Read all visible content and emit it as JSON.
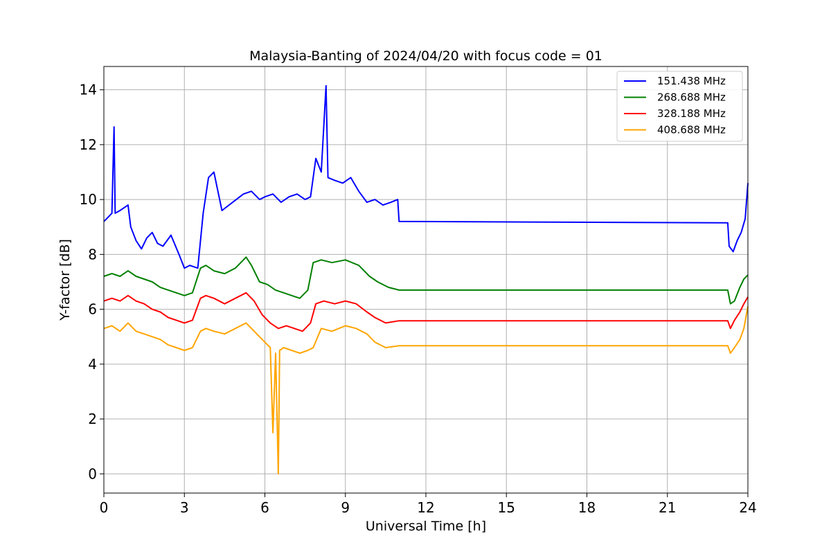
{
  "chart_data": {
    "type": "line",
    "title": "Malaysia-Banting of 2024/04/20 with focus code = 01",
    "xlabel": "Universal Time [h]",
    "ylabel": "Y-factor [dB]",
    "xlim": [
      0,
      24
    ],
    "ylim": [
      -0.7,
      14.85
    ],
    "xticks": [
      0,
      3,
      6,
      9,
      12,
      15,
      18,
      21,
      24
    ],
    "yticks": [
      0,
      2,
      4,
      6,
      8,
      10,
      12,
      14
    ],
    "grid": true,
    "legend_position": "top-right",
    "series": [
      {
        "name": "151.438 MHz",
        "color": "#0000ff",
        "x": [
          0,
          0.1,
          0.3,
          0.38,
          0.42,
          0.6,
          0.9,
          1.0,
          1.2,
          1.4,
          1.6,
          1.8,
          2.0,
          2.2,
          2.5,
          2.8,
          3.0,
          3.2,
          3.5,
          3.7,
          3.9,
          4.1,
          4.4,
          4.8,
          5.2,
          5.5,
          5.8,
          6.0,
          6.3,
          6.6,
          6.9,
          7.2,
          7.5,
          7.7,
          7.9,
          8.1,
          8.28,
          8.35,
          8.6,
          8.9,
          9.2,
          9.5,
          9.8,
          10.1,
          10.4,
          10.7,
          10.95,
          11.0,
          23.25,
          23.3,
          23.45,
          23.6,
          23.75,
          23.9,
          24.0
        ],
        "y": [
          9.2,
          9.3,
          9.5,
          12.65,
          9.5,
          9.6,
          9.8,
          9.0,
          8.5,
          8.2,
          8.6,
          8.8,
          8.4,
          8.3,
          8.7,
          8.0,
          7.5,
          7.6,
          7.5,
          9.5,
          10.8,
          11.0,
          9.6,
          9.9,
          10.2,
          10.3,
          10.0,
          10.1,
          10.2,
          9.9,
          10.1,
          10.2,
          10.0,
          10.1,
          11.5,
          11.0,
          14.15,
          10.8,
          10.7,
          10.6,
          10.8,
          10.3,
          9.9,
          10.0,
          9.8,
          9.9,
          10.0,
          9.2,
          9.15,
          8.3,
          8.1,
          8.5,
          8.8,
          9.3,
          10.6
        ]
      },
      {
        "name": "268.688 MHz",
        "color": "#008000",
        "x": [
          0,
          0.3,
          0.6,
          0.9,
          1.2,
          1.5,
          1.8,
          2.1,
          2.4,
          2.7,
          3.0,
          3.3,
          3.6,
          3.8,
          4.1,
          4.5,
          4.9,
          5.3,
          5.5,
          5.8,
          6.1,
          6.4,
          6.7,
          7.0,
          7.3,
          7.6,
          7.8,
          8.1,
          8.5,
          9.0,
          9.5,
          9.9,
          10.2,
          10.6,
          11.0,
          23.25,
          23.35,
          23.5,
          23.7,
          23.85,
          24.0
        ],
        "y": [
          7.2,
          7.3,
          7.2,
          7.4,
          7.2,
          7.1,
          7.0,
          6.8,
          6.7,
          6.6,
          6.5,
          6.6,
          7.5,
          7.6,
          7.4,
          7.3,
          7.5,
          7.9,
          7.6,
          7.0,
          6.9,
          6.7,
          6.6,
          6.5,
          6.4,
          6.7,
          7.7,
          7.8,
          7.7,
          7.8,
          7.6,
          7.2,
          7.0,
          6.8,
          6.7,
          6.7,
          6.2,
          6.3,
          6.8,
          7.1,
          7.25
        ]
      },
      {
        "name": "328.188 MHz",
        "color": "#ff0000",
        "x": [
          0,
          0.3,
          0.6,
          0.9,
          1.2,
          1.5,
          1.8,
          2.1,
          2.4,
          2.7,
          3.0,
          3.3,
          3.6,
          3.8,
          4.1,
          4.5,
          4.9,
          5.3,
          5.6,
          5.9,
          6.2,
          6.5,
          6.8,
          7.1,
          7.4,
          7.7,
          7.9,
          8.2,
          8.6,
          9.0,
          9.4,
          9.8,
          10.1,
          10.5,
          11.0,
          23.25,
          23.35,
          23.5,
          23.7,
          23.85,
          24.0
        ],
        "y": [
          6.3,
          6.4,
          6.3,
          6.5,
          6.3,
          6.2,
          6.0,
          5.9,
          5.7,
          5.6,
          5.5,
          5.6,
          6.4,
          6.5,
          6.4,
          6.2,
          6.4,
          6.6,
          6.3,
          5.8,
          5.5,
          5.3,
          5.4,
          5.3,
          5.2,
          5.5,
          6.2,
          6.3,
          6.2,
          6.3,
          6.2,
          5.9,
          5.7,
          5.5,
          5.58,
          5.58,
          5.3,
          5.6,
          5.9,
          6.2,
          6.45
        ]
      },
      {
        "name": "408.688 MHz",
        "color": "#ffa500",
        "x": [
          0,
          0.3,
          0.6,
          0.9,
          1.2,
          1.5,
          1.8,
          2.1,
          2.4,
          2.7,
          3.0,
          3.3,
          3.6,
          3.8,
          4.1,
          4.5,
          4.9,
          5.3,
          5.6,
          5.9,
          6.2,
          6.3,
          6.4,
          6.5,
          6.55,
          6.7,
          7.0,
          7.3,
          7.6,
          7.8,
          8.1,
          8.5,
          9.0,
          9.4,
          9.8,
          10.1,
          10.5,
          11.0,
          23.25,
          23.35,
          23.5,
          23.7,
          23.85,
          24.0
        ],
        "y": [
          5.3,
          5.4,
          5.2,
          5.5,
          5.2,
          5.1,
          5.0,
          4.9,
          4.7,
          4.6,
          4.5,
          4.6,
          5.2,
          5.3,
          5.2,
          5.1,
          5.3,
          5.5,
          5.2,
          4.9,
          4.6,
          1.5,
          4.4,
          0.0,
          4.5,
          4.6,
          4.5,
          4.4,
          4.5,
          4.6,
          5.3,
          5.2,
          5.4,
          5.3,
          5.1,
          4.8,
          4.6,
          4.67,
          4.67,
          4.4,
          4.6,
          4.9,
          5.3,
          6.1
        ]
      }
    ]
  }
}
